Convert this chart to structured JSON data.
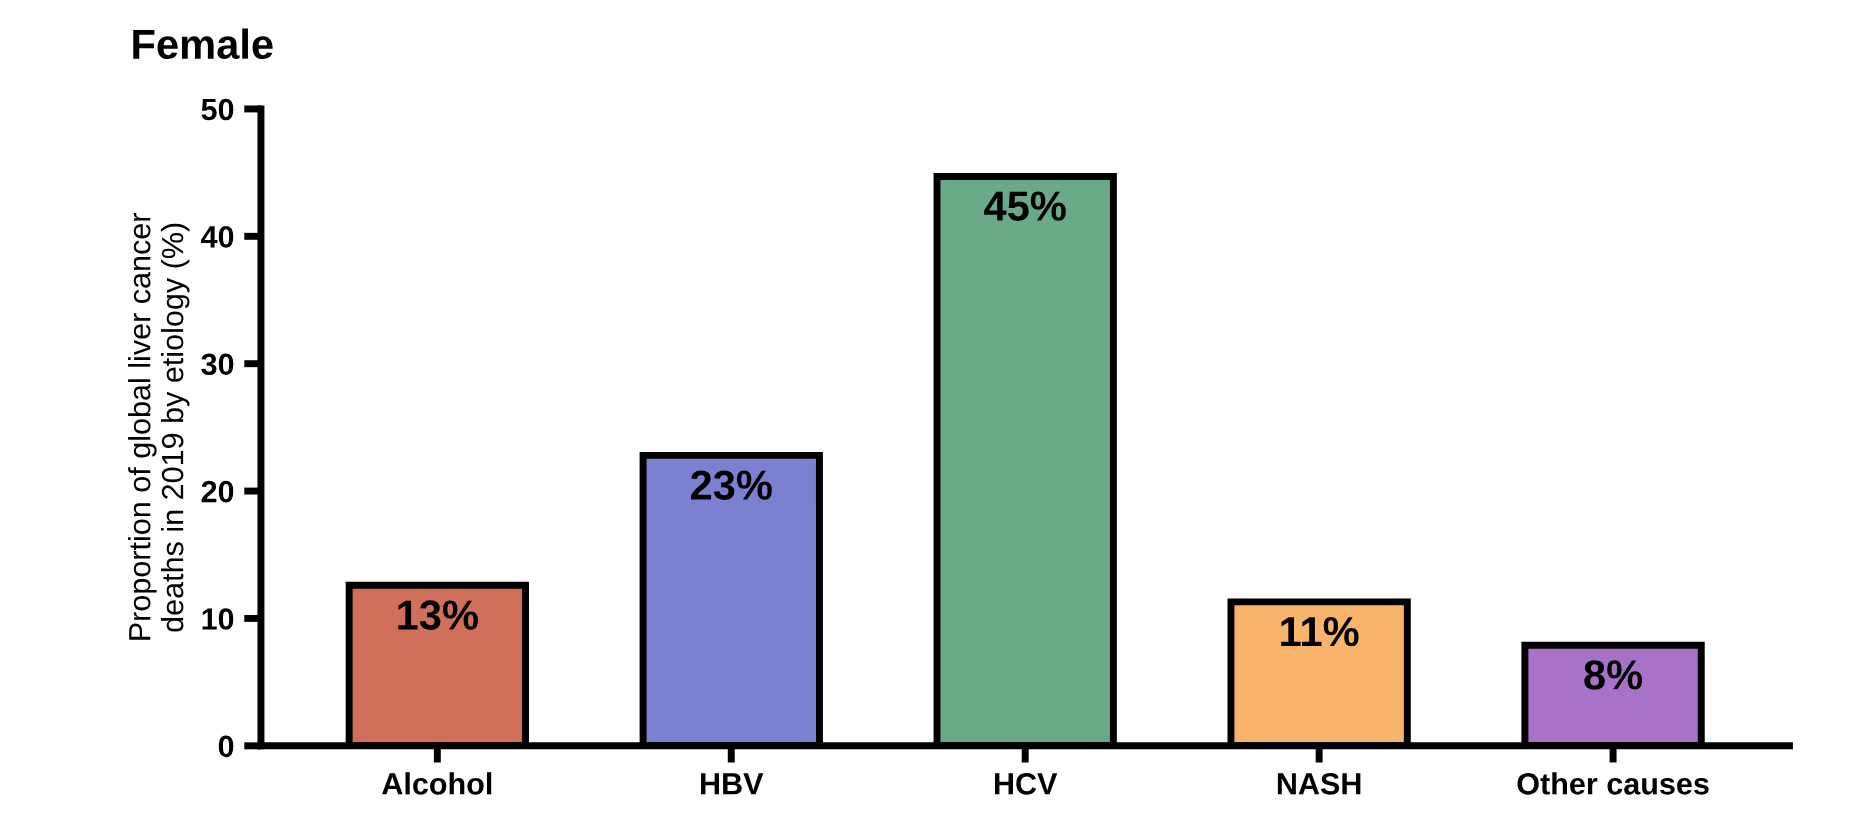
{
  "chart_data": {
    "type": "bar",
    "title": "Female",
    "ylabel": "Proportion of global liver cancer\ndeaths in 2019 by etiology (%)",
    "categories": [
      "Alcohol",
      "HBV",
      "HCV",
      "NASH",
      "Other causes"
    ],
    "values": [
      12.6,
      22.8,
      44.7,
      11.3,
      7.9
    ],
    "value_labels": [
      "13%",
      "23%",
      "45%",
      "11%",
      "8%"
    ],
    "colors": [
      "#d0705a",
      "#7b80d0",
      "#6aaa88",
      "#f8b46a",
      "#a772c8"
    ],
    "ylim": [
      0,
      50
    ],
    "yticks": [
      0,
      10,
      20,
      30,
      40,
      50
    ],
    "grid": false,
    "legend": false
  }
}
